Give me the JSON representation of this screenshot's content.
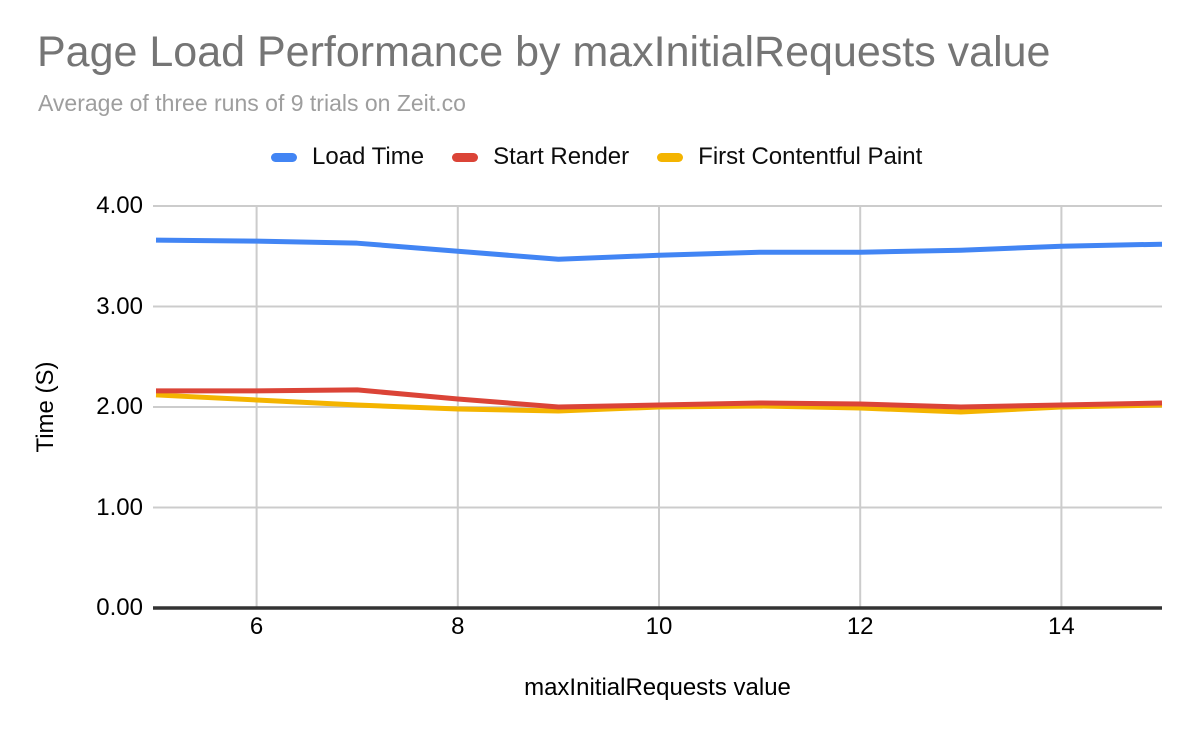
{
  "title": "Page Load Performance by maxInitialRequests value",
  "subtitle": "Average of three runs of 9 trials on Zeit.co",
  "colors": {
    "title_text": "#757575",
    "subtitle_text": "#9e9e9e",
    "tick_text": "#000000",
    "gridline": "#cccccc",
    "axis_line": "#333333",
    "background": "#ffffff"
  },
  "chart_data": {
    "type": "line",
    "title": "Page Load Performance by maxInitialRequests value",
    "subtitle": "Average of three runs of 9 trials on Zeit.co",
    "xlabel": "maxInitialRequests value",
    "ylabel": "Time (S)",
    "xlim": [
      5,
      15
    ],
    "ylim": [
      0,
      4
    ],
    "grid": true,
    "legend_position": "top",
    "x": [
      5,
      6,
      7,
      8,
      9,
      10,
      11,
      12,
      13,
      14,
      15
    ],
    "x_tick_labels": [
      "6",
      "8",
      "10",
      "12",
      "14"
    ],
    "x_tick_values": [
      6,
      8,
      10,
      12,
      14
    ],
    "y_tick_labels": [
      "0.00",
      "1.00",
      "2.00",
      "3.00",
      "4.00"
    ],
    "y_tick_values": [
      0,
      1,
      2,
      3,
      4
    ],
    "series": [
      {
        "name": "Load Time",
        "color": "#4285f4",
        "values": [
          3.66,
          3.65,
          3.63,
          3.55,
          3.47,
          3.51,
          3.54,
          3.54,
          3.56,
          3.6,
          3.62
        ]
      },
      {
        "name": "Start Render",
        "color": "#db4437",
        "values": [
          2.16,
          2.16,
          2.17,
          2.08,
          2.0,
          2.02,
          2.04,
          2.03,
          2.0,
          2.02,
          2.04
        ]
      },
      {
        "name": "First Contentful Paint",
        "color": "#f4b400",
        "values": [
          2.12,
          2.07,
          2.02,
          1.98,
          1.96,
          2.0,
          2.01,
          1.99,
          1.95,
          2.0,
          2.02
        ]
      }
    ]
  }
}
